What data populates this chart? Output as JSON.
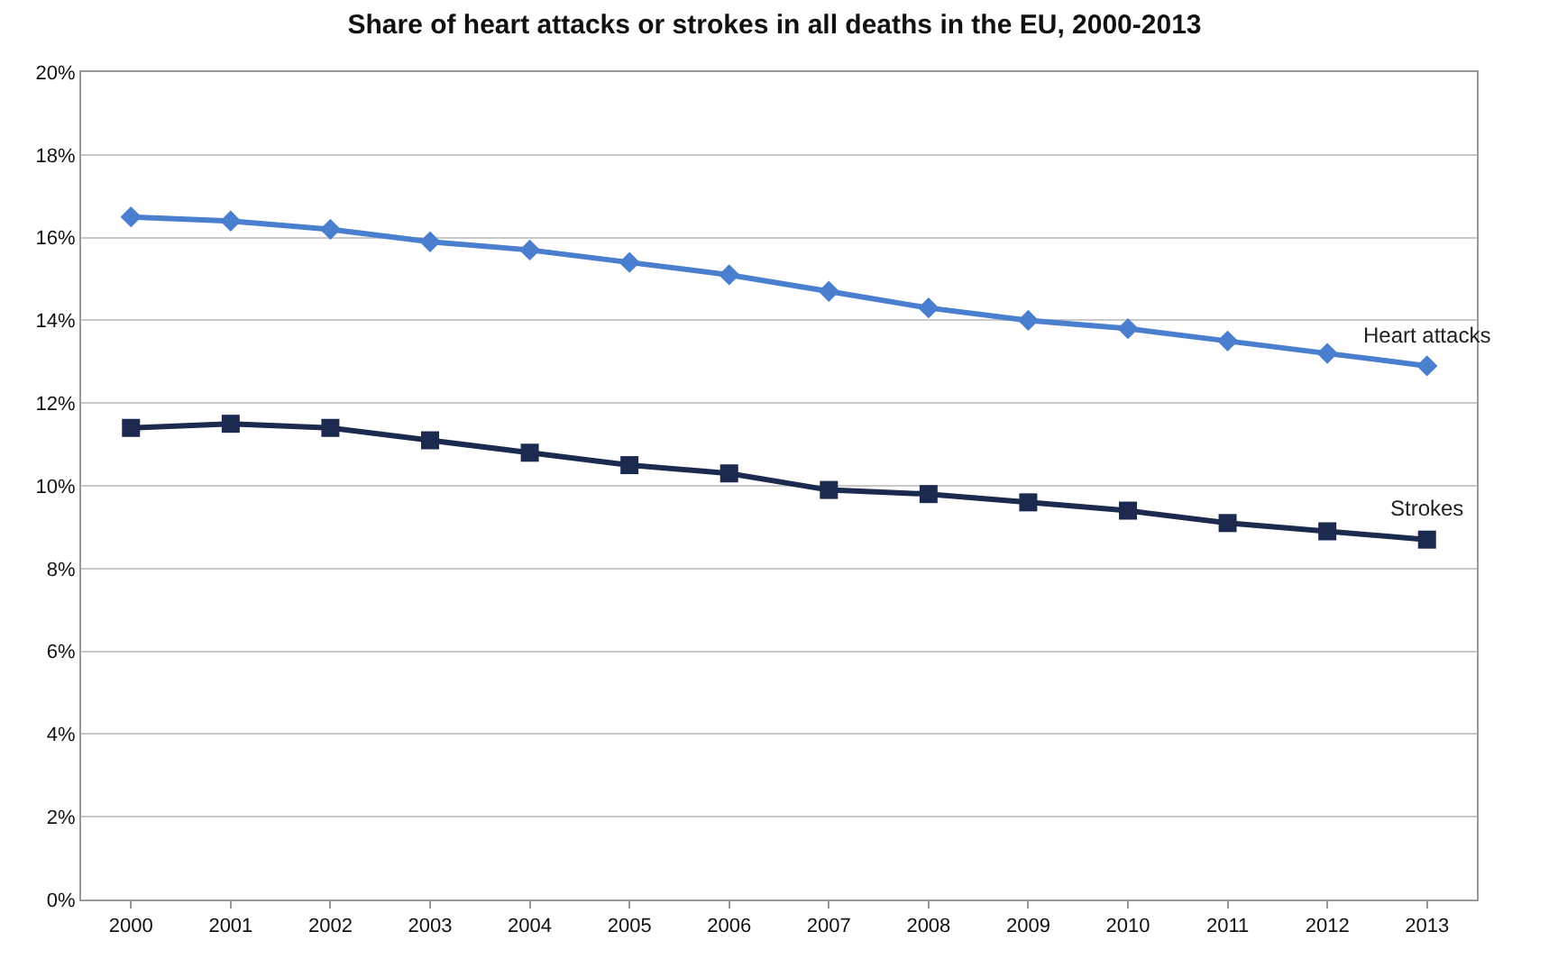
{
  "chart_data": {
    "type": "line",
    "title": "Share of heart attacks or strokes in all deaths in the EU, 2000-2013",
    "categories": [
      "2000",
      "2001",
      "2002",
      "2003",
      "2004",
      "2005",
      "2006",
      "2007",
      "2008",
      "2009",
      "2010",
      "2011",
      "2012",
      "2013"
    ],
    "series": [
      {
        "name": "Heart attacks",
        "color": "#4a7fd0",
        "marker": "diamond",
        "values": [
          16.5,
          16.4,
          16.2,
          15.9,
          15.7,
          15.4,
          15.1,
          14.7,
          14.3,
          14.0,
          13.8,
          13.5,
          13.2,
          12.9
        ]
      },
      {
        "name": "Strokes",
        "color": "#1c2a4f",
        "marker": "square",
        "values": [
          11.4,
          11.5,
          11.4,
          11.1,
          10.8,
          10.5,
          10.3,
          9.9,
          9.8,
          9.6,
          9.4,
          9.1,
          8.9,
          8.7
        ]
      }
    ],
    "ylim": [
      0,
      20
    ],
    "yticks": [
      {
        "value": 0,
        "label": "0%"
      },
      {
        "value": 2,
        "label": "2%"
      },
      {
        "value": 4,
        "label": "4%"
      },
      {
        "value": 6,
        "label": "6%"
      },
      {
        "value": 8,
        "label": "8%"
      },
      {
        "value": 10,
        "label": "10%"
      },
      {
        "value": 12,
        "label": "12%"
      },
      {
        "value": 14,
        "label": "14%"
      },
      {
        "value": 16,
        "label": "16%"
      },
      {
        "value": 18,
        "label": "18%"
      },
      {
        "value": 20,
        "label": "20%"
      }
    ],
    "grid": "y",
    "legend": false,
    "line_style": "solid"
  }
}
